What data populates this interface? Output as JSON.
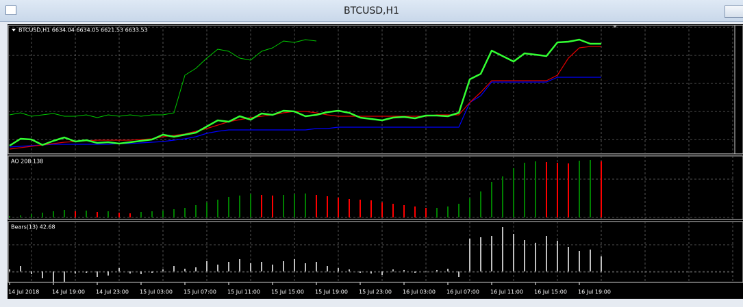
{
  "window": {
    "title": "BTCUSD,H1"
  },
  "chart_data": [
    {
      "type": "line",
      "title": "BTCUSD,H1 6634.04 6634.05 6621.53 6633.53",
      "categories": [
        "14 Jul 2018",
        null,
        null,
        null,
        "14 Jul 19:00",
        null,
        null,
        null,
        "14 Jul 23:00",
        null,
        null,
        null,
        "15 Jul 03:00",
        null,
        null,
        null,
        "15 Jul 07:00",
        null,
        null,
        null,
        "15 Jul 11:00",
        null,
        null,
        null,
        "15 Jul 15:00",
        null,
        null,
        null,
        "15 Jul 19:00",
        null,
        null,
        null,
        "15 Jul 23:00",
        null,
        null,
        null,
        "16 Jul 03:00",
        null,
        null,
        null,
        "16 Jul 07:00",
        null,
        null,
        null,
        "16 Jul 11:00",
        null,
        null,
        null,
        "16 Jul 15:00",
        null,
        null,
        null,
        "16 Jul 19:00",
        null,
        null
      ],
      "ylim": [
        0,
        185
      ],
      "series": [
        {
          "color": "#00cc00",
          "line_width": 1,
          "values": [
            57,
            60,
            55,
            57,
            59,
            55,
            55,
            57,
            53,
            57,
            55,
            57,
            55,
            57,
            57,
            60,
            115,
            125,
            140,
            153,
            150,
            140,
            137,
            150,
            155,
            165,
            163,
            167,
            165,
            null,
            null,
            null,
            null,
            null,
            null,
            null,
            null,
            null,
            null,
            null,
            null,
            null,
            null,
            null,
            null,
            null,
            null,
            null,
            null,
            null,
            null,
            null,
            null,
            null,
            null
          ]
        },
        {
          "color": "#0000ff",
          "line_width": 1.2,
          "values": [
            10,
            11,
            12,
            13,
            14,
            14,
            14,
            14,
            14,
            14,
            15,
            15,
            16,
            17,
            18,
            20,
            22,
            25,
            30,
            33,
            35,
            35,
            35,
            35,
            35,
            35,
            35,
            35,
            37,
            37,
            39,
            39,
            39,
            39,
            39,
            39,
            39,
            39,
            39,
            39,
            39,
            39,
            75,
            85,
            105,
            105,
            105,
            105,
            105,
            105,
            112,
            112,
            112,
            112,
            112
          ]
        },
        {
          "color": "#e00000",
          "line_width": 1.2,
          "values": [
            7,
            9,
            11,
            13,
            15,
            17,
            18,
            19,
            20,
            20,
            20,
            20,
            21,
            22,
            25,
            27,
            29,
            33,
            37,
            42,
            47,
            50,
            53,
            55,
            57,
            60,
            62,
            62,
            60,
            57,
            55,
            55,
            55,
            55,
            55,
            55,
            55,
            55,
            55,
            57,
            57,
            57,
            75,
            90,
            107,
            107,
            107,
            107,
            107,
            107,
            115,
            140,
            155,
            157,
            157
          ]
        },
        {
          "color": "#33ff33",
          "line_width": 2.5,
          "values": [
            12,
            22,
            21,
            13,
            19,
            24,
            18,
            20,
            16,
            17,
            15,
            17,
            19,
            21,
            28,
            25,
            28,
            31,
            40,
            49,
            47,
            55,
            50,
            59,
            57,
            63,
            62,
            55,
            57,
            61,
            63,
            60,
            53,
            51,
            49,
            53,
            54,
            52,
            56,
            56,
            55,
            60,
            109,
            117,
            151,
            143,
            135,
            147,
            145,
            143,
            163,
            164,
            167,
            161,
            161
          ]
        }
      ]
    },
    {
      "type": "bar",
      "title": "AO 208.138",
      "ylim": [
        0,
        90
      ],
      "up_color": "#008000",
      "down_color": "#ff0000",
      "values": [
        2,
        3,
        5,
        7,
        9,
        11,
        9,
        10,
        8,
        9,
        7,
        6,
        8,
        9,
        10,
        12,
        14,
        18,
        22,
        26,
        30,
        32,
        34,
        33,
        32,
        33,
        34,
        35,
        33,
        31,
        29,
        27,
        26,
        25,
        22,
        20,
        18,
        16,
        14,
        14,
        16,
        20,
        28,
        38,
        52,
        60,
        72,
        80,
        82,
        81,
        80,
        79,
        83,
        84,
        82
      ]
    },
    {
      "type": "bar",
      "title": "Bears(13) 42.68",
      "ylim": [
        -15,
        70
      ],
      "color": "#c0c0c0",
      "values": [
        3,
        8,
        -4,
        -10,
        -15,
        -15,
        -3,
        -2,
        -8,
        -6,
        5,
        -3,
        -4,
        -2,
        3,
        8,
        4,
        6,
        15,
        10,
        14,
        18,
        12,
        14,
        10,
        15,
        18,
        12,
        14,
        8,
        5,
        3,
        -2,
        -3,
        -5,
        3,
        2,
        -2,
        1,
        2,
        4,
        -8,
        48,
        50,
        52,
        65,
        55,
        46,
        42,
        52,
        45,
        36,
        30,
        32,
        22
      ]
    }
  ]
}
